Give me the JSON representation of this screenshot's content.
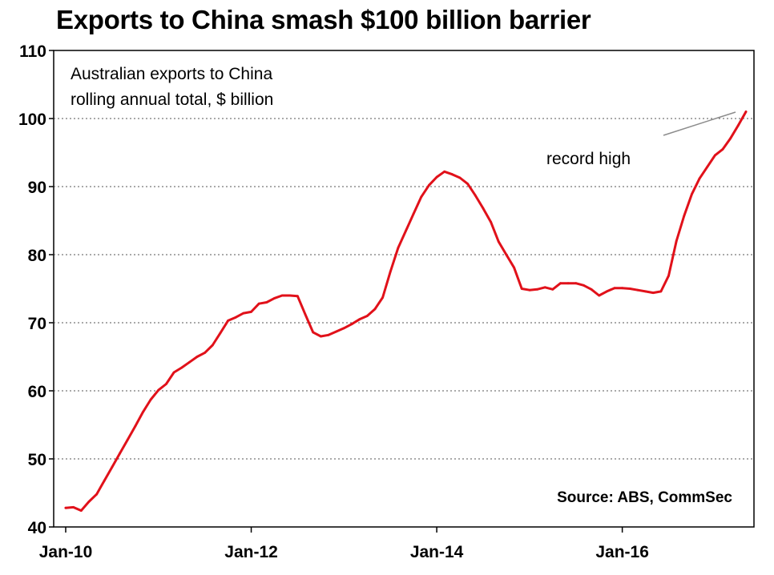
{
  "chart_data": {
    "type": "line",
    "title": "Exports to China smash $100 billion barrier",
    "subtitle_lines": [
      "Australian exports to China",
      "rolling annual total, $ billion"
    ],
    "annotation": "record high",
    "source": "Source: ABS, CommSec",
    "ylim": [
      40,
      110
    ],
    "yticks": [
      40,
      50,
      60,
      70,
      80,
      90,
      100,
      110
    ],
    "xticks": [
      {
        "label": "Jan-10",
        "index": 0
      },
      {
        "label": "Jan-12",
        "index": 24
      },
      {
        "label": "Jan-14",
        "index": 48
      },
      {
        "label": "Jan-16",
        "index": 72
      }
    ],
    "grid": "horizontal-dotted",
    "series": [
      {
        "name": "Australian exports to China",
        "color": "#e1111a",
        "values": [
          42.8,
          42.9,
          42.4,
          43.7,
          44.8,
          46.8,
          48.8,
          50.8,
          52.8,
          54.8,
          56.9,
          58.7,
          60.1,
          61.0,
          62.7,
          63.4,
          64.2,
          65.0,
          65.6,
          66.7,
          68.5,
          70.3,
          70.8,
          71.4,
          71.6,
          72.8,
          73.0,
          73.6,
          74.0,
          74.0,
          73.9,
          71.2,
          68.6,
          68.0,
          68.2,
          68.7,
          69.2,
          69.8,
          70.5,
          71.0,
          72.0,
          73.7,
          77.5,
          81.0,
          83.5,
          86.0,
          88.5,
          90.2,
          91.4,
          92.2,
          91.8,
          91.3,
          90.4,
          88.7,
          86.8,
          84.8,
          81.9,
          80.0,
          78.1,
          75.0,
          74.8,
          74.9,
          75.2,
          74.9,
          75.8,
          75.8,
          75.8,
          75.5,
          74.9,
          74.0,
          74.6,
          75.1,
          75.1,
          75.0,
          74.8,
          74.6,
          74.4,
          74.6,
          76.9,
          82.0,
          85.7,
          88.9,
          91.2,
          92.9,
          94.6,
          95.5,
          97.1,
          99.0,
          101.0
        ]
      }
    ]
  }
}
